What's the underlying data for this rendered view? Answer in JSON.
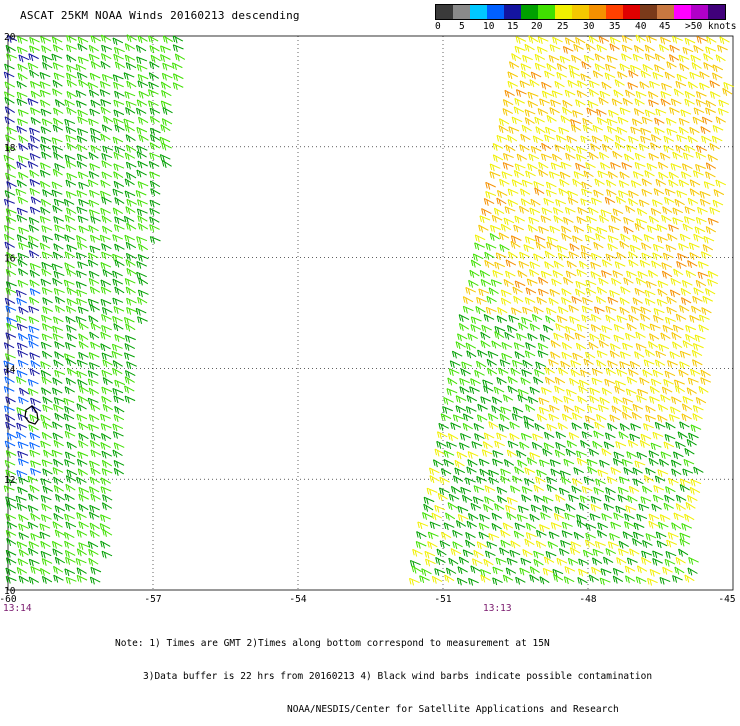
{
  "title": "ASCAT 25KM NOAA Winds 20160213 descending",
  "legend": {
    "colors": [
      "#3a3a3a",
      "#8a8a8a",
      "#00c8ff",
      "#0060ff",
      "#1414a0",
      "#00a000",
      "#40e000",
      "#f0f000",
      "#f5c800",
      "#f59000",
      "#ff4000",
      "#e00000",
      "#7a3a1a",
      "#c87840",
      "#ff00ff",
      "#b000c8",
      "#40007a"
    ],
    "labels": [
      "0",
      "5",
      "10",
      "15",
      "20",
      "25",
      "30",
      "35",
      "40",
      "45",
      ">50 knots"
    ]
  },
  "map": {
    "lon_ticks": [
      "-60",
      "-57",
      "-54",
      "-51",
      "-48",
      "-45"
    ],
    "lat_ticks": [
      "20",
      "18",
      "16",
      "14",
      "12",
      "10"
    ],
    "lon_range": [
      -60,
      -45
    ],
    "lat_range": [
      10,
      20
    ],
    "gridlines": "dotted",
    "swath_times": [
      "13:14",
      "13:13"
    ]
  },
  "notes": [
    "Note: 1) Times are GMT 2)Times along bottom correspond to measurement at 15N",
    "3)Data buffer is 22 hrs from 20160213 4) Black wind barbs indicate possible contamination",
    "NOAA/NESDIS/Center for Satellite Applications and Research"
  ],
  "swaths": [
    {
      "name": "west-swath",
      "wind_kt_range": [
        10,
        20
      ],
      "colors": [
        "#00a000",
        "#40e000",
        "#1414a0",
        "#0060ff"
      ]
    },
    {
      "name": "east-swath",
      "wind_kt_range": [
        15,
        30
      ],
      "colors": [
        "#f0f000",
        "#f5c800",
        "#00a000",
        "#40e000",
        "#f59000"
      ]
    }
  ]
}
